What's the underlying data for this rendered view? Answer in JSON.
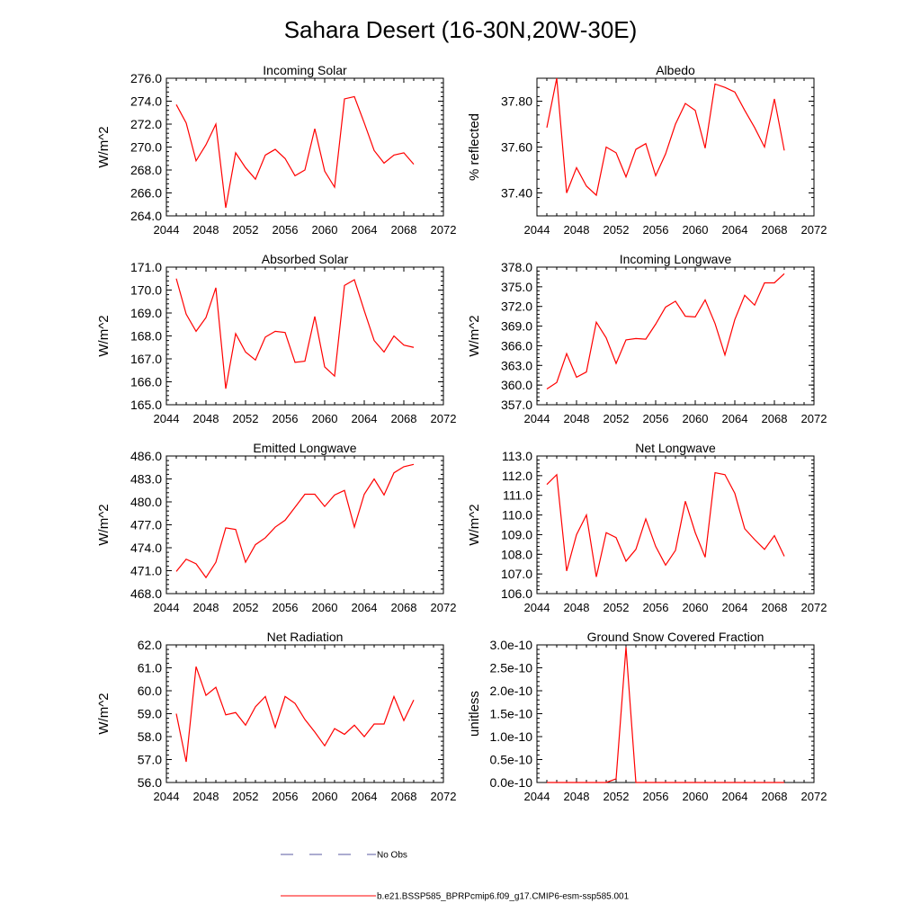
{
  "figure": {
    "title": "Sahara Desert (16-30N,20W-30E)",
    "line_color": "#ff0000",
    "obs_color": "#5a5aa0",
    "legend": {
      "obs_label": "No Obs",
      "model_label": "b.e21.BSSP585_BPRPcmip6.f09_g17.CMIP6-esm-ssp585.001"
    }
  },
  "chart_data": [
    {
      "type": "line",
      "title": "Incoming Solar",
      "ylabel": "W/m^2",
      "xlim": [
        2044,
        2072
      ],
      "x_ticks": [
        2044,
        2048,
        2052,
        2056,
        2060,
        2064,
        2068,
        2072
      ],
      "ylim": [
        264,
        276
      ],
      "y_ticks": [
        "264.0",
        "266.0",
        "268.0",
        "270.0",
        "272.0",
        "274.0",
        "276.0"
      ],
      "x": [
        2045,
        2046,
        2047,
        2048,
        2049,
        2050,
        2051,
        2052,
        2053,
        2054,
        2055,
        2056,
        2057,
        2058,
        2059,
        2060,
        2061,
        2062,
        2063,
        2064,
        2065,
        2066,
        2067,
        2068,
        2069
      ],
      "values": [
        273.7,
        272.1,
        268.8,
        270.2,
        272.0,
        264.7,
        269.5,
        268.2,
        267.2,
        269.3,
        269.8,
        269.0,
        267.5,
        268.0,
        271.6,
        267.9,
        266.5,
        274.2,
        274.4,
        272.1,
        269.7,
        268.6,
        269.3,
        269.5,
        268.5
      ]
    },
    {
      "type": "line",
      "title": "Albedo",
      "ylabel": "% reflected",
      "xlim": [
        2044,
        2072
      ],
      "x_ticks": [
        2044,
        2048,
        2052,
        2056,
        2060,
        2064,
        2068,
        2072
      ],
      "ylim": [
        37.3,
        37.9
      ],
      "y_ticks": [
        "37.40",
        "37.60",
        "37.80"
      ],
      "x": [
        2045,
        2046,
        2047,
        2048,
        2049,
        2050,
        2051,
        2052,
        2053,
        2054,
        2055,
        2056,
        2057,
        2058,
        2059,
        2060,
        2061,
        2062,
        2063,
        2064,
        2065,
        2066,
        2067,
        2068,
        2069
      ],
      "values": [
        37.685,
        37.9,
        37.4,
        37.51,
        37.43,
        37.39,
        37.6,
        37.575,
        37.47,
        37.59,
        37.615,
        37.475,
        37.57,
        37.7,
        37.79,
        37.76,
        37.595,
        37.875,
        37.86,
        37.84,
        37.76,
        37.685,
        37.6,
        37.81,
        37.585
      ]
    },
    {
      "type": "line",
      "title": "Absorbed Solar",
      "ylabel": "W/m^2",
      "xlim": [
        2044,
        2072
      ],
      "x_ticks": [
        2044,
        2048,
        2052,
        2056,
        2060,
        2064,
        2068,
        2072
      ],
      "ylim": [
        165,
        171
      ],
      "y_ticks": [
        "165.0",
        "166.0",
        "167.0",
        "168.0",
        "169.0",
        "170.0",
        "171.0"
      ],
      "x": [
        2045,
        2046,
        2047,
        2048,
        2049,
        2050,
        2051,
        2052,
        2053,
        2054,
        2055,
        2056,
        2057,
        2058,
        2059,
        2060,
        2061,
        2062,
        2063,
        2064,
        2065,
        2066,
        2067,
        2068,
        2069
      ],
      "values": [
        170.5,
        168.95,
        168.2,
        168.8,
        170.1,
        165.7,
        168.1,
        167.3,
        166.95,
        167.95,
        168.2,
        168.15,
        166.85,
        166.9,
        168.85,
        166.65,
        166.25,
        170.2,
        170.45,
        169.1,
        167.8,
        167.3,
        168.0,
        167.6,
        167.5
      ]
    },
    {
      "type": "line",
      "title": "Incoming Longwave",
      "ylabel": "W/m^2",
      "xlim": [
        2044,
        2072
      ],
      "x_ticks": [
        2044,
        2048,
        2052,
        2056,
        2060,
        2064,
        2068,
        2072
      ],
      "ylim": [
        357,
        378
      ],
      "y_ticks": [
        "357.0",
        "360.0",
        "363.0",
        "366.0",
        "369.0",
        "372.0",
        "375.0",
        "378.0"
      ],
      "x": [
        2045,
        2046,
        2047,
        2048,
        2049,
        2050,
        2051,
        2052,
        2053,
        2054,
        2055,
        2056,
        2057,
        2058,
        2059,
        2060,
        2061,
        2062,
        2063,
        2064,
        2065,
        2066,
        2067,
        2068,
        2069
      ],
      "values": [
        359.4,
        360.4,
        364.8,
        361.2,
        362.0,
        369.6,
        367.2,
        363.3,
        366.9,
        367.1,
        367.0,
        369.3,
        371.9,
        372.8,
        370.5,
        370.4,
        373.0,
        369.4,
        364.6,
        370.0,
        373.7,
        372.2,
        375.6,
        375.6,
        377.0
      ]
    },
    {
      "type": "line",
      "title": "Emitted Longwave",
      "ylabel": "W/m^2",
      "xlim": [
        2044,
        2072
      ],
      "x_ticks": [
        2044,
        2048,
        2052,
        2056,
        2060,
        2064,
        2068,
        2072
      ],
      "ylim": [
        468,
        486
      ],
      "y_ticks": [
        "468.0",
        "471.0",
        "474.0",
        "477.0",
        "480.0",
        "483.0",
        "486.0"
      ],
      "x": [
        2045,
        2046,
        2047,
        2048,
        2049,
        2050,
        2051,
        2052,
        2053,
        2054,
        2055,
        2056,
        2057,
        2058,
        2059,
        2060,
        2061,
        2062,
        2063,
        2064,
        2065,
        2066,
        2067,
        2068,
        2069
      ],
      "values": [
        470.9,
        472.5,
        471.9,
        470.1,
        472.1,
        476.6,
        476.4,
        472.1,
        474.4,
        475.3,
        476.7,
        477.6,
        479.3,
        481.0,
        481.0,
        479.4,
        480.9,
        481.5,
        476.7,
        481.0,
        483.0,
        480.9,
        483.8,
        484.6,
        484.9
      ]
    },
    {
      "type": "line",
      "title": "Net Longwave",
      "ylabel": "W/m^2",
      "xlim": [
        2044,
        2072
      ],
      "x_ticks": [
        2044,
        2048,
        2052,
        2056,
        2060,
        2064,
        2068,
        2072
      ],
      "ylim": [
        106,
        113
      ],
      "y_ticks": [
        "106.0",
        "107.0",
        "108.0",
        "109.0",
        "110.0",
        "111.0",
        "112.0",
        "113.0"
      ],
      "x": [
        2045,
        2046,
        2047,
        2048,
        2049,
        2050,
        2051,
        2052,
        2053,
        2054,
        2055,
        2056,
        2057,
        2058,
        2059,
        2060,
        2061,
        2062,
        2063,
        2064,
        2065,
        2066,
        2067,
        2068,
        2069
      ],
      "values": [
        111.55,
        112.05,
        107.15,
        109.0,
        110.0,
        106.85,
        109.1,
        108.85,
        107.65,
        108.25,
        109.8,
        108.4,
        107.45,
        108.2,
        110.7,
        109.1,
        107.85,
        112.15,
        112.05,
        111.1,
        109.3,
        108.75,
        108.25,
        108.95,
        107.9
      ]
    },
    {
      "type": "line",
      "title": "Net Radiation",
      "ylabel": "W/m^2",
      "xlim": [
        2044,
        2072
      ],
      "x_ticks": [
        2044,
        2048,
        2052,
        2056,
        2060,
        2064,
        2068,
        2072
      ],
      "ylim": [
        56,
        62
      ],
      "y_ticks": [
        "56.0",
        "57.0",
        "58.0",
        "59.0",
        "60.0",
        "61.0",
        "62.0"
      ],
      "x": [
        2045,
        2046,
        2047,
        2048,
        2049,
        2050,
        2051,
        2052,
        2053,
        2054,
        2055,
        2056,
        2057,
        2058,
        2059,
        2060,
        2061,
        2062,
        2063,
        2064,
        2065,
        2066,
        2067,
        2068,
        2069
      ],
      "values": [
        59.0,
        56.9,
        61.05,
        59.8,
        60.15,
        58.95,
        59.05,
        58.5,
        59.3,
        59.75,
        58.4,
        59.75,
        59.45,
        58.75,
        58.2,
        57.6,
        58.35,
        58.1,
        58.5,
        58.0,
        58.55,
        58.55,
        59.75,
        58.7,
        59.6
      ]
    },
    {
      "type": "line",
      "title": "Ground Snow Covered Fraction",
      "ylabel": "unitless",
      "xlim": [
        2044,
        2072
      ],
      "x_ticks": [
        2044,
        2048,
        2052,
        2056,
        2060,
        2064,
        2068,
        2072
      ],
      "ylim": [
        0,
        3e-10
      ],
      "y_ticks": [
        "0.0e-10",
        "0.5e-10",
        "1.0e-10",
        "1.5e-10",
        "2.0e-10",
        "2.5e-10",
        "3.0e-10"
      ],
      "x": [
        2045,
        2046,
        2047,
        2048,
        2049,
        2050,
        2051,
        2052,
        2053,
        2054,
        2055,
        2056,
        2057,
        2058,
        2059,
        2060,
        2061,
        2062,
        2063,
        2064,
        2065,
        2066,
        2067,
        2068,
        2069
      ],
      "values": [
        0,
        0,
        0,
        0,
        0,
        0,
        0,
        8e-12,
        2.95e-10,
        0,
        0,
        0,
        0,
        0,
        0,
        0,
        0,
        0,
        0,
        0,
        0,
        0,
        0,
        0,
        0
      ]
    }
  ]
}
